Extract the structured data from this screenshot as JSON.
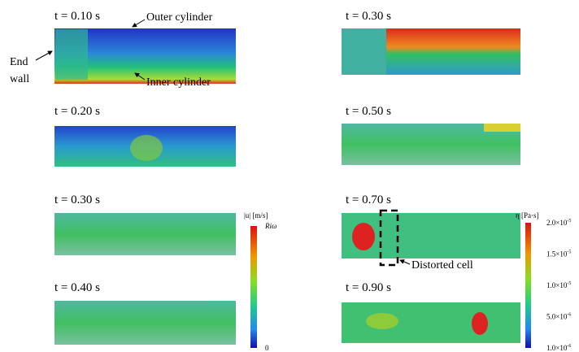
{
  "panels": [
    {
      "label": "t = 0.10 s"
    },
    {
      "label": "t = 0.20 s"
    },
    {
      "label": "t = 0.30 s"
    },
    {
      "label": "t = 0.40 s"
    },
    {
      "label": "t = 0.30 s"
    },
    {
      "label": "t = 0.50 s"
    },
    {
      "label": "t = 0.70 s"
    },
    {
      "label": "t = 0.90 s"
    }
  ],
  "annotations": {
    "outer": "Outer cylinder",
    "end_wall_1": "End",
    "end_wall_2": "wall",
    "inner": "Inner cylinder",
    "distorted": "Distorted cell"
  },
  "velocity_colorbar": {
    "title": "|u| [m/s]",
    "top": "Riω",
    "bottom": "0"
  },
  "viscosity_colorbar": {
    "title": "η [Pa·s]",
    "ticks": [
      {
        "mantissa": "2.0×10",
        "exponent": "-5"
      },
      {
        "mantissa": "1.5×10",
        "exponent": "-5"
      },
      {
        "mantissa": "1.0×10",
        "exponent": "-5"
      },
      {
        "mantissa": "5.0×10",
        "exponent": "-6"
      },
      {
        "mantissa": "1.0×10",
        "exponent": "-6"
      }
    ]
  }
}
